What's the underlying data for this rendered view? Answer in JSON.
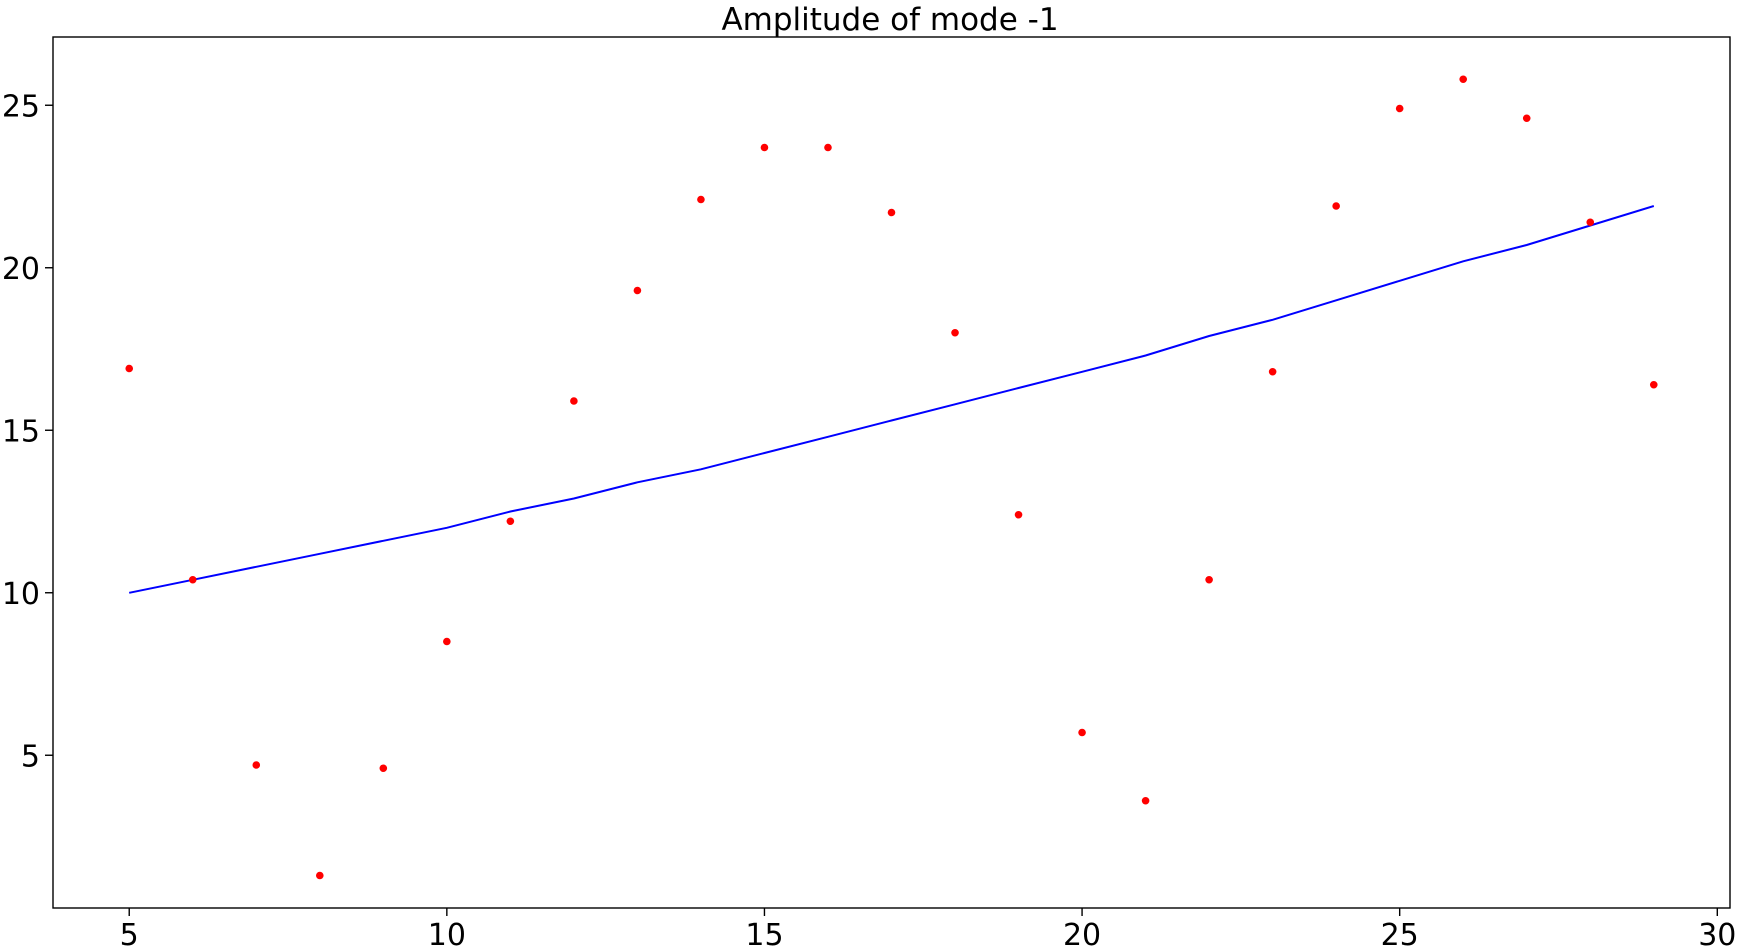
{
  "chart_data": {
    "type": "scatter",
    "title": "Amplitude of mode -1",
    "xlabel": "",
    "ylabel": "",
    "xlim": [
      3.8,
      30.2
    ],
    "ylim": [
      0.3,
      27.1
    ],
    "grid": false,
    "xticks": [
      5,
      10,
      15,
      20,
      25,
      30
    ],
    "xtick_labels": [
      "5",
      "10",
      "15",
      "20",
      "25",
      "30"
    ],
    "yticks": [
      5,
      10,
      15,
      20,
      25
    ],
    "ytick_labels": [
      "5",
      "10",
      "15",
      "20",
      "25"
    ],
    "points": {
      "color": "#ff0000",
      "x": [
        5,
        6,
        7,
        8,
        9,
        10,
        11,
        12,
        13,
        14,
        15,
        16,
        17,
        18,
        19,
        20,
        21,
        22,
        23,
        24,
        25,
        26,
        27,
        28,
        29
      ],
      "y": [
        16.9,
        10.4,
        4.7,
        1.3,
        4.6,
        8.5,
        12.2,
        15.9,
        19.3,
        22.1,
        23.7,
        23.7,
        21.7,
        18.0,
        12.4,
        5.7,
        3.6,
        10.4,
        16.8,
        21.9,
        24.9,
        25.8,
        24.6,
        21.4,
        16.4
      ]
    },
    "fit_line": {
      "color": "#0000ff",
      "x": [
        5,
        6,
        7,
        8,
        9,
        10,
        11,
        12,
        13,
        14,
        15,
        16,
        17,
        18,
        19,
        20,
        21,
        22,
        23,
        24,
        25,
        26,
        27,
        28,
        29
      ],
      "y": [
        10.0,
        10.4,
        10.8,
        11.2,
        11.6,
        12.0,
        12.5,
        12.9,
        13.4,
        13.8,
        14.3,
        14.8,
        15.3,
        15.8,
        16.3,
        16.8,
        17.3,
        17.9,
        18.4,
        19.0,
        19.6,
        20.2,
        20.7,
        21.3,
        21.9
      ]
    }
  }
}
